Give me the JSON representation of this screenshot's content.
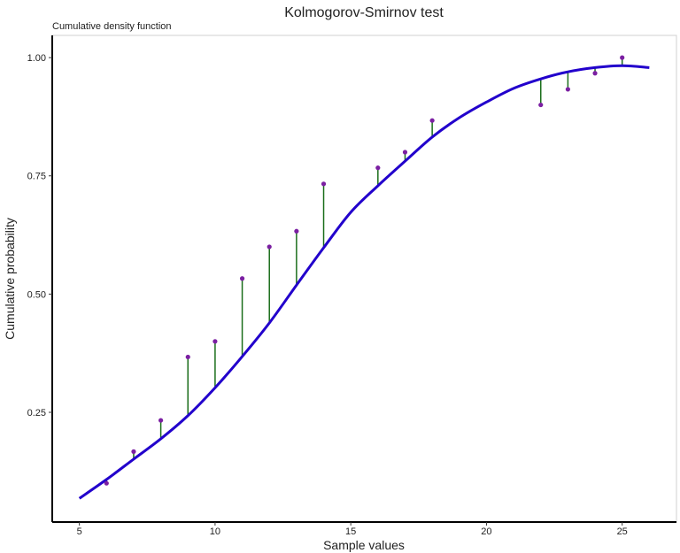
{
  "chart_data": {
    "type": "line",
    "title": "Kolmogorov-Smirnov test",
    "subtitle": "Cumulative density function",
    "xlabel": "Sample values",
    "ylabel": "Cumulative probability",
    "xlim": [
      4.0,
      27.0
    ],
    "ylim": [
      0.018,
      1.047
    ],
    "xticks": [
      5,
      10,
      15,
      20,
      25
    ],
    "xtick_labels": [
      "5",
      "10",
      "15",
      "20",
      "25"
    ],
    "yticks": [
      0.25,
      0.5,
      0.75,
      1.0
    ],
    "ytick_labels": [
      "0.25",
      "0.50",
      "0.75",
      "1.00"
    ],
    "grid": false,
    "colors": {
      "curve": "#2200cc",
      "points": "#7b1fa2",
      "segments": "#1b6e1b"
    },
    "curve": {
      "x": [
        5,
        6,
        7,
        8,
        9,
        10,
        11,
        12,
        13,
        14,
        15,
        16,
        17,
        18,
        19,
        20,
        21,
        22,
        23,
        24,
        25,
        26
      ],
      "y": [
        0.068,
        0.108,
        0.151,
        0.194,
        0.243,
        0.302,
        0.368,
        0.439,
        0.519,
        0.598,
        0.673,
        0.729,
        0.781,
        0.832,
        0.873,
        0.906,
        0.935,
        0.955,
        0.97,
        0.979,
        0.983,
        0.979
      ]
    },
    "ecdf_points": {
      "x": [
        6,
        7,
        8,
        9,
        10,
        11,
        12,
        13,
        14,
        16,
        17,
        18,
        22,
        23,
        24,
        25
      ],
      "y": [
        0.1,
        0.167,
        0.233,
        0.367,
        0.4,
        0.533,
        0.6,
        0.633,
        0.733,
        0.767,
        0.8,
        0.867,
        0.9,
        0.933,
        0.967,
        1.0
      ]
    }
  }
}
